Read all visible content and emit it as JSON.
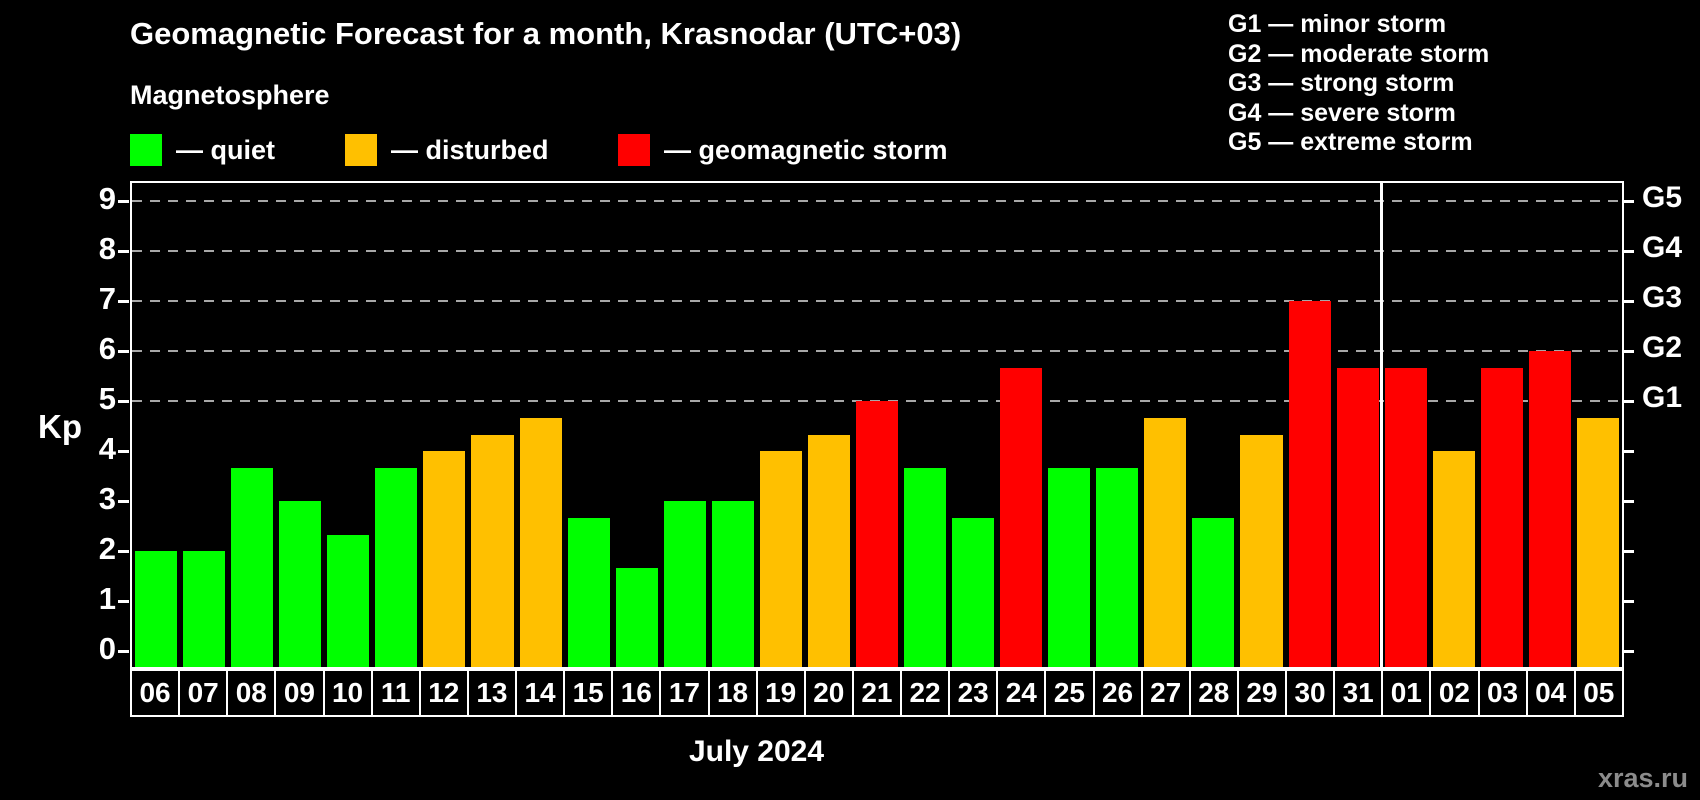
{
  "page": {
    "background": "#000000"
  },
  "header": {
    "title": "Geomagnetic Forecast for a month, Krasnodar (UTC+03)",
    "subtitle": "Magnetosphere"
  },
  "legend": {
    "items": [
      {
        "label": "— quiet",
        "status": "quiet",
        "color": "#00FF00"
      },
      {
        "label": "— disturbed",
        "status": "disturbed",
        "color": "#FFC000"
      },
      {
        "label": "— geomagnetic storm",
        "status": "storm",
        "color": "#FF0000"
      }
    ]
  },
  "storm_scale_legend": {
    "lines": [
      "G1 — minor storm",
      "G2 — moderate storm",
      "G3 — strong storm",
      "G4 — severe storm",
      "G5 — extreme storm"
    ]
  },
  "chart_data": {
    "type": "bar",
    "title": "Geomagnetic Forecast for a month, Krasnodar (UTC+03)",
    "subtitle": "Magnetosphere",
    "xlabel": "July 2024",
    "ylabel": "Kp",
    "ylim": [
      -0.36,
      9.4
    ],
    "y_ticks": [
      0,
      1,
      2,
      3,
      4,
      5,
      6,
      7,
      8,
      9
    ],
    "grid": "dashed horizontal lines at Kp 5-9 only",
    "gridline_kp_levels": [
      5,
      6,
      7,
      8,
      9
    ],
    "right_axis_labels": [
      {
        "label": "G1",
        "kp": 5
      },
      {
        "label": "G2",
        "kp": 6
      },
      {
        "label": "G3",
        "kp": 7
      },
      {
        "label": "G4",
        "kp": 8
      },
      {
        "label": "G5",
        "kp": 9
      }
    ],
    "status_colors": {
      "quiet": "#00FF00",
      "disturbed": "#FFC000",
      "storm": "#FF0000"
    },
    "month_separator_after_index": 25,
    "bars": [
      {
        "date": "06",
        "kp": 2.0,
        "status": "quiet"
      },
      {
        "date": "07",
        "kp": 2.0,
        "status": "quiet"
      },
      {
        "date": "08",
        "kp": 3.67,
        "status": "quiet"
      },
      {
        "date": "09",
        "kp": 3.0,
        "status": "quiet"
      },
      {
        "date": "10",
        "kp": 2.33,
        "status": "quiet"
      },
      {
        "date": "11",
        "kp": 3.67,
        "status": "quiet"
      },
      {
        "date": "12",
        "kp": 4.0,
        "status": "disturbed"
      },
      {
        "date": "13",
        "kp": 4.33,
        "status": "disturbed"
      },
      {
        "date": "14",
        "kp": 4.67,
        "status": "disturbed"
      },
      {
        "date": "15",
        "kp": 2.67,
        "status": "quiet"
      },
      {
        "date": "16",
        "kp": 1.67,
        "status": "quiet"
      },
      {
        "date": "17",
        "kp": 3.0,
        "status": "quiet"
      },
      {
        "date": "18",
        "kp": 3.0,
        "status": "quiet"
      },
      {
        "date": "19",
        "kp": 4.0,
        "status": "disturbed"
      },
      {
        "date": "20",
        "kp": 4.33,
        "status": "disturbed"
      },
      {
        "date": "21",
        "kp": 5.0,
        "status": "storm"
      },
      {
        "date": "22",
        "kp": 3.67,
        "status": "quiet"
      },
      {
        "date": "23",
        "kp": 2.67,
        "status": "quiet"
      },
      {
        "date": "24",
        "kp": 5.67,
        "status": "storm"
      },
      {
        "date": "25",
        "kp": 3.67,
        "status": "quiet"
      },
      {
        "date": "26",
        "kp": 3.67,
        "status": "quiet"
      },
      {
        "date": "27",
        "kp": 4.67,
        "status": "disturbed"
      },
      {
        "date": "28",
        "kp": 2.67,
        "status": "quiet"
      },
      {
        "date": "29",
        "kp": 4.33,
        "status": "disturbed"
      },
      {
        "date": "30",
        "kp": 7.0,
        "status": "storm"
      },
      {
        "date": "31",
        "kp": 5.67,
        "status": "storm"
      },
      {
        "date": "01",
        "kp": 5.67,
        "status": "storm"
      },
      {
        "date": "02",
        "kp": 4.0,
        "status": "disturbed"
      },
      {
        "date": "03",
        "kp": 5.67,
        "status": "storm"
      },
      {
        "date": "04",
        "kp": 6.0,
        "status": "storm"
      },
      {
        "date": "05",
        "kp": 4.67,
        "status": "disturbed"
      }
    ]
  },
  "watermark": "xras.ru"
}
